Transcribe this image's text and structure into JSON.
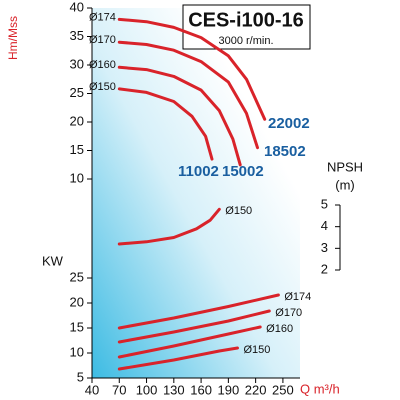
{
  "chart_data": [
    {
      "type": "line",
      "title": "CES-i100-16",
      "subtitle": "3000 r/min.",
      "ylabel": "Hm/Mss",
      "xlim": [
        40,
        260
      ],
      "ylim": [
        10,
        40
      ],
      "yticks": [
        10,
        15,
        20,
        25,
        30,
        35,
        40
      ],
      "color": "#d9232a",
      "series": [
        {
          "name": "Ø174",
          "model": "22002",
          "x": [
            70,
            100,
            130,
            160,
            190,
            210,
            230
          ],
          "values": [
            38,
            37.6,
            36.6,
            34.8,
            31.6,
            27.5,
            20.5
          ]
        },
        {
          "name": "Ø170",
          "model": "18502",
          "x": [
            70,
            100,
            130,
            160,
            190,
            210,
            222
          ],
          "values": [
            34,
            33.6,
            32.6,
            30.6,
            27,
            21.5,
            15.5
          ]
        },
        {
          "name": "Ø160",
          "model": "15002",
          "x": [
            70,
            100,
            130,
            160,
            180,
            195,
            203
          ],
          "values": [
            29.6,
            29.2,
            28,
            25.6,
            22,
            17,
            12.5
          ]
        },
        {
          "name": "Ø150",
          "model": "11002",
          "x": [
            70,
            100,
            130,
            150,
            165,
            172
          ],
          "values": [
            25.8,
            25.2,
            23.6,
            21,
            17.5,
            13.5
          ]
        }
      ]
    },
    {
      "type": "line",
      "ylabel": "NPSH",
      "yunit": "(m)",
      "xlim": [
        40,
        260
      ],
      "ylim": [
        2,
        5
      ],
      "yticks": [
        2,
        3,
        4,
        5
      ],
      "color": "#d9232a",
      "series": [
        {
          "name": "Ø150",
          "x": [
            70,
            100,
            130,
            155,
            170,
            180
          ],
          "values": [
            3.2,
            3.3,
            3.5,
            3.9,
            4.3,
            4.8
          ]
        }
      ]
    },
    {
      "type": "line",
      "ylabel": "KW",
      "xlabel": "Q m³/h",
      "xlim": [
        40,
        260
      ],
      "ylim": [
        5,
        25
      ],
      "yticks": [
        5,
        10,
        15,
        20,
        25
      ],
      "xticks": [
        40,
        70,
        100,
        130,
        160,
        190,
        220,
        250
      ],
      "color": "#d9232a",
      "series": [
        {
          "name": "Ø174",
          "x": [
            70,
            130,
            190,
            245
          ],
          "values": [
            15,
            17,
            19.3,
            21.6
          ]
        },
        {
          "name": "Ø170",
          "x": [
            70,
            130,
            190,
            235
          ],
          "values": [
            12.2,
            14.2,
            16.4,
            18.4
          ]
        },
        {
          "name": "Ø160",
          "x": [
            70,
            130,
            190,
            225
          ],
          "values": [
            9.2,
            11.4,
            13.8,
            15.2
          ]
        },
        {
          "name": "Ø150",
          "x": [
            70,
            130,
            180,
            200
          ],
          "values": [
            6.8,
            8.6,
            10.4,
            11
          ]
        }
      ]
    }
  ]
}
